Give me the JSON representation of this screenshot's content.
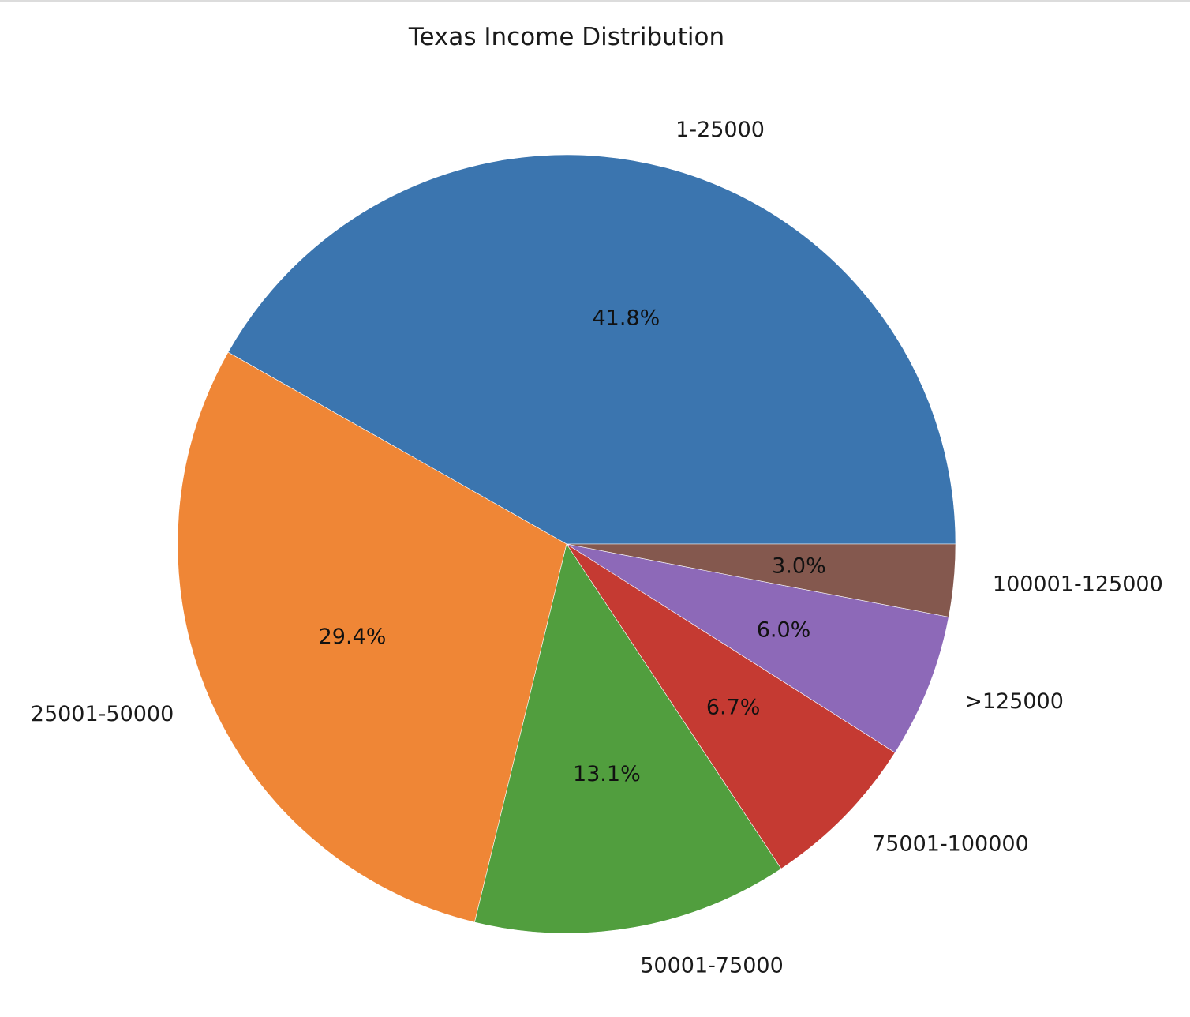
{
  "chart_data": {
    "type": "pie",
    "title": "Texas Income Distribution",
    "start_angle_deg": 0,
    "direction": "counterclockwise",
    "slices": [
      {
        "label": "1-25000",
        "value": 41.8,
        "pct_label": "41.8%",
        "color": "#3b75af"
      },
      {
        "label": "25001-50000",
        "value": 29.4,
        "pct_label": "29.4%",
        "color": "#ef8636"
      },
      {
        "label": "50001-75000",
        "value": 13.1,
        "pct_label": "13.1%",
        "color": "#519e3e"
      },
      {
        "label": "75001-100000",
        "value": 6.7,
        "pct_label": "6.7%",
        "color": "#c53a32"
      },
      {
        "label": ">125000",
        "value": 6.0,
        "pct_label": "6.0%",
        "color": "#8d69b8"
      },
      {
        "label": "100001-125000",
        "value": 3.0,
        "pct_label": "3.0%",
        "color": "#84584e"
      }
    ]
  }
}
